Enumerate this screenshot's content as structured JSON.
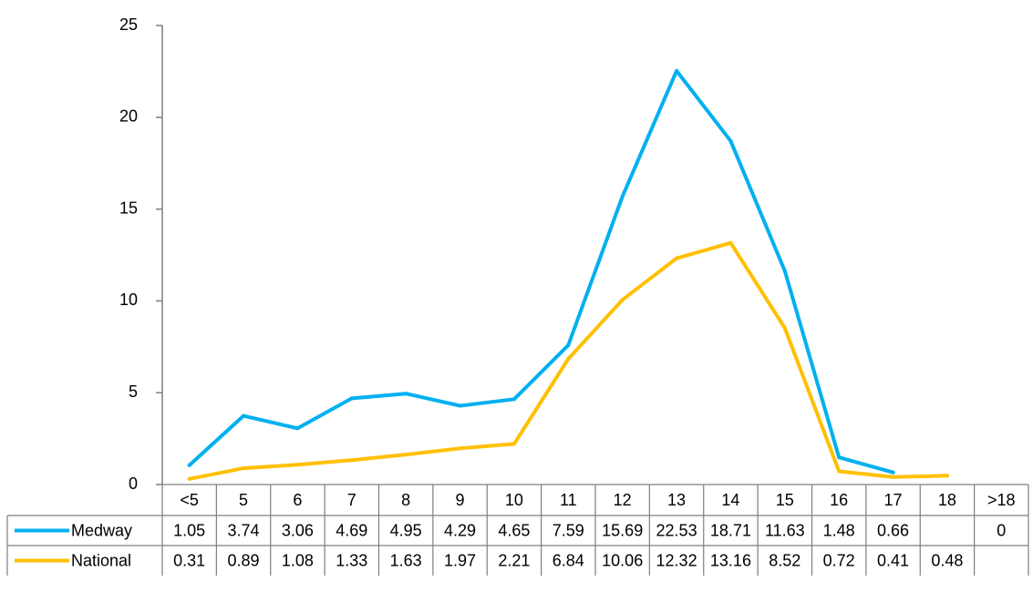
{
  "chart_data": {
    "type": "line",
    "title": "",
    "xlabel": "",
    "ylabel": "",
    "ylim": [
      0,
      25
    ],
    "yticks": [
      0,
      5,
      10,
      15,
      20,
      25
    ],
    "categories": [
      "<5",
      "5",
      "6",
      "7",
      "8",
      "9",
      "10",
      "11",
      "12",
      "13",
      "14",
      "15",
      "16",
      "17",
      "18",
      ">18"
    ],
    "legend_placement": "data-table",
    "grid": false,
    "series": [
      {
        "name": "Medway",
        "color": "#00B0F0",
        "values": [
          1.05,
          3.74,
          3.06,
          4.69,
          4.95,
          4.29,
          4.65,
          7.59,
          15.69,
          22.53,
          18.71,
          11.63,
          1.48,
          0.66,
          null,
          0
        ],
        "labels": [
          "1.05",
          "3.74",
          "3.06",
          "4.69",
          "4.95",
          "4.29",
          "4.65",
          "7.59",
          "15.69",
          "22.53",
          "18.71",
          "11.63",
          "1.48",
          "0.66",
          "",
          "0"
        ]
      },
      {
        "name": "National",
        "color": "#FFC000",
        "values": [
          0.31,
          0.89,
          1.08,
          1.33,
          1.63,
          1.97,
          2.21,
          6.84,
          10.06,
          12.32,
          13.16,
          8.52,
          0.72,
          0.41,
          0.48,
          null
        ],
        "labels": [
          "0.31",
          "0.89",
          "1.08",
          "1.33",
          "1.63",
          "1.97",
          "2.21",
          "6.84",
          "10.06",
          "12.32",
          "13.16",
          "8.52",
          "0.72",
          "0.41",
          "0.48",
          ""
        ]
      }
    ]
  }
}
